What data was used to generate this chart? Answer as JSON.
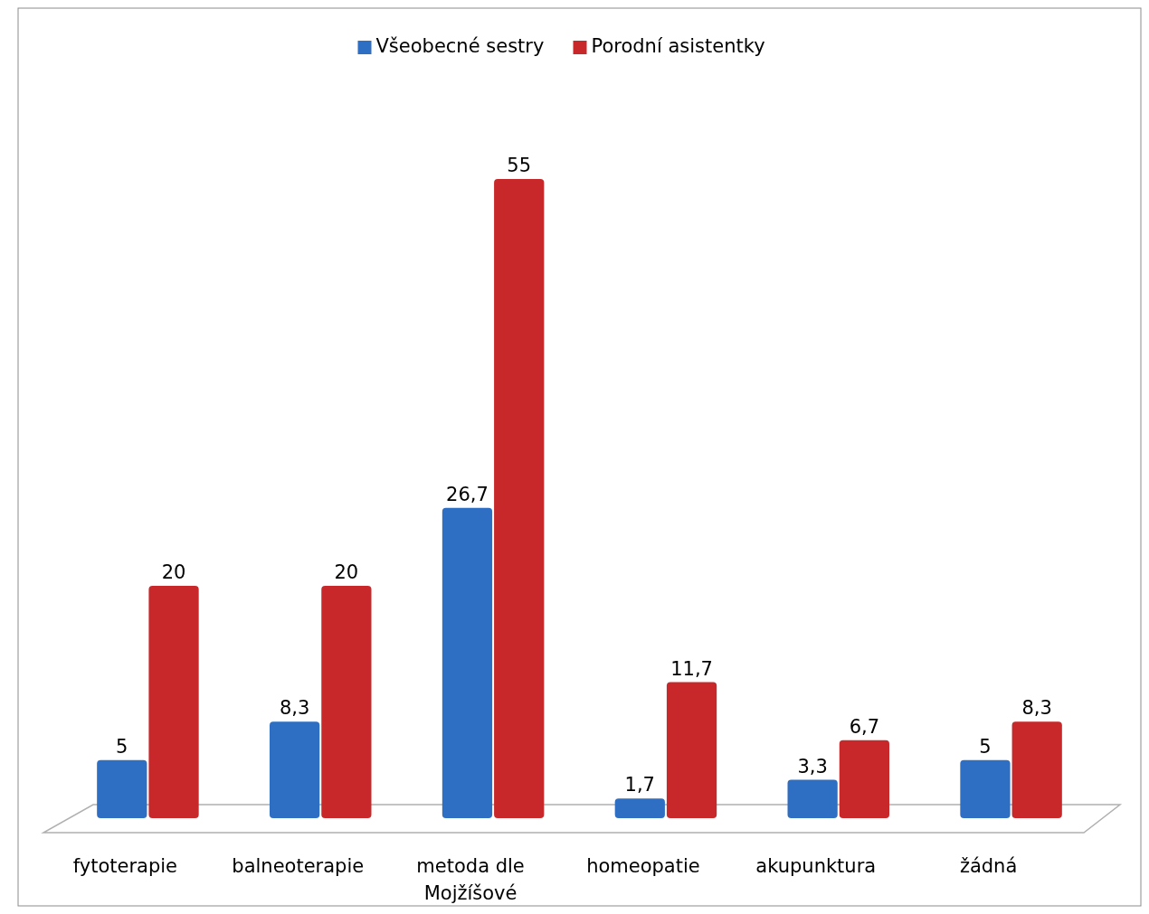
{
  "chart_data": {
    "type": "bar",
    "categories": [
      "fytoterapie",
      "balneoterapie",
      "metoda dle Mojžíšové",
      "homeopatie",
      "akupunktura",
      "žádná"
    ],
    "series": [
      {
        "name": "Všeobecné sestry",
        "color": "#2e6fc4",
        "values": [
          5,
          8.3,
          26.7,
          1.7,
          3.3,
          5
        ],
        "value_labels": [
          "5",
          "8,3",
          "26,7",
          "1,7",
          "3,3",
          "5"
        ]
      },
      {
        "name": "Porodní asistentky",
        "color": "#c8282a",
        "values": [
          20,
          20,
          55,
          11.7,
          6.7,
          8.3
        ],
        "value_labels": [
          "20",
          "20",
          "55",
          "11,7",
          "6,7",
          "8,3"
        ]
      }
    ],
    "legend": "top"
  }
}
